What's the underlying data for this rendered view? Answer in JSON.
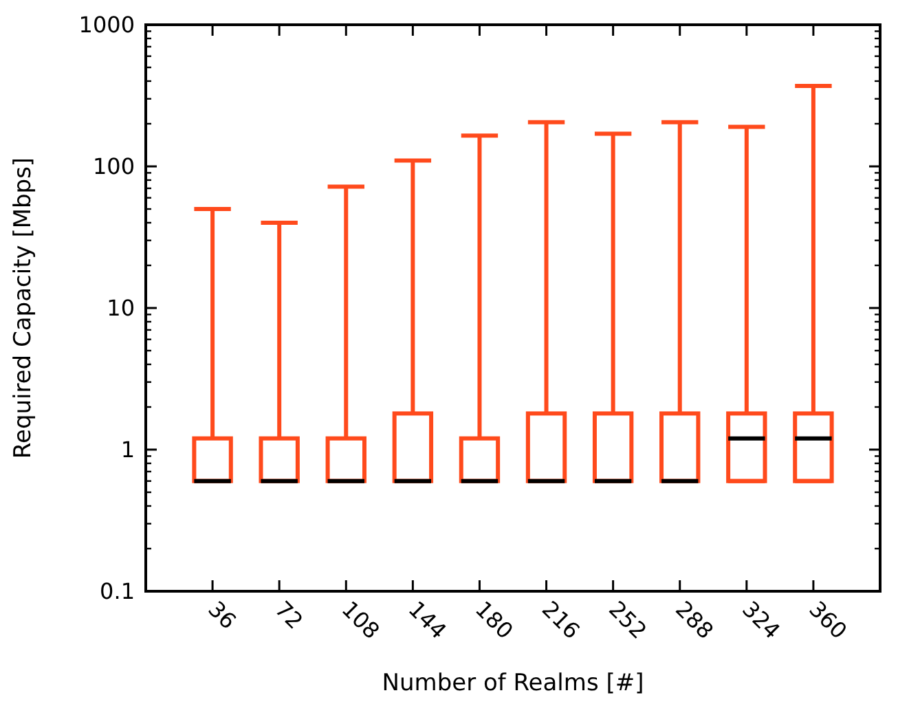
{
  "chart_data": {
    "type": "box",
    "xlabel": "Number of Realms [#]",
    "ylabel": "Required Capacity [Mbps]",
    "categories": [
      "36",
      "72",
      "108",
      "144",
      "180",
      "216",
      "252",
      "288",
      "324",
      "360"
    ],
    "log": true,
    "ylim": [
      0.1,
      1000
    ],
    "yticks": [
      0.1,
      1,
      10,
      100,
      1000
    ],
    "grid": false,
    "color": "#ff4a1c",
    "boxes": [
      {
        "low": 0.6,
        "q1": 0.6,
        "median": 0.6,
        "q3": 1.2,
        "high": 50
      },
      {
        "low": 0.6,
        "q1": 0.6,
        "median": 0.6,
        "q3": 1.2,
        "high": 40
      },
      {
        "low": 0.6,
        "q1": 0.6,
        "median": 0.6,
        "q3": 1.2,
        "high": 72
      },
      {
        "low": 0.6,
        "q1": 0.6,
        "median": 0.6,
        "q3": 1.8,
        "high": 110
      },
      {
        "low": 0.6,
        "q1": 0.6,
        "median": 0.6,
        "q3": 1.2,
        "high": 165
      },
      {
        "low": 0.6,
        "q1": 0.6,
        "median": 0.6,
        "q3": 1.8,
        "high": 205
      },
      {
        "low": 0.6,
        "q1": 0.6,
        "median": 0.6,
        "q3": 1.8,
        "high": 170
      },
      {
        "low": 0.6,
        "q1": 0.6,
        "median": 0.6,
        "q3": 1.8,
        "high": 205
      },
      {
        "low": 0.6,
        "q1": 0.6,
        "median": 1.2,
        "q3": 1.8,
        "high": 190
      },
      {
        "low": 0.6,
        "q1": 0.6,
        "median": 1.2,
        "q3": 1.8,
        "high": 370
      }
    ]
  }
}
